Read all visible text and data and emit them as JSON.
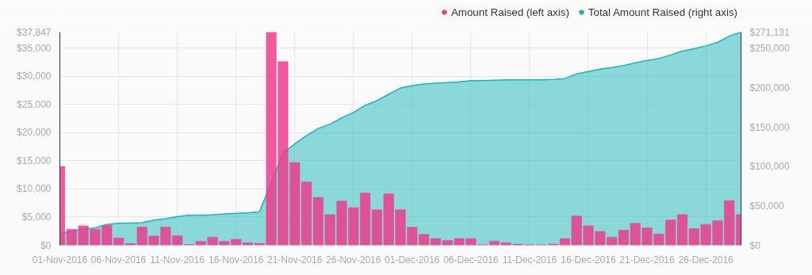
{
  "chart_data": {
    "type": "bar",
    "x": [
      "2016-11-01",
      "2016-11-02",
      "2016-11-03",
      "2016-11-04",
      "2016-11-05",
      "2016-11-06",
      "2016-11-07",
      "2016-11-08",
      "2016-11-09",
      "2016-11-10",
      "2016-11-11",
      "2016-11-12",
      "2016-11-13",
      "2016-11-14",
      "2016-11-15",
      "2016-11-16",
      "2016-11-17",
      "2016-11-18",
      "2016-11-19",
      "2016-11-20",
      "2016-11-21",
      "2016-11-22",
      "2016-11-23",
      "2016-11-24",
      "2016-11-25",
      "2016-11-26",
      "2016-11-27",
      "2016-11-28",
      "2016-11-29",
      "2016-11-30",
      "2016-12-01",
      "2016-12-02",
      "2016-12-03",
      "2016-12-04",
      "2016-12-05",
      "2016-12-06",
      "2016-12-07",
      "2016-12-08",
      "2016-12-09",
      "2016-12-10",
      "2016-12-11",
      "2016-12-12",
      "2016-12-13",
      "2016-12-14",
      "2016-12-15",
      "2016-12-16",
      "2016-12-17",
      "2016-12-18",
      "2016-12-19",
      "2016-12-20",
      "2016-12-21",
      "2016-12-22",
      "2016-12-23",
      "2016-12-24",
      "2016-12-25",
      "2016-12-26",
      "2016-12-27",
      "2016-12-28",
      "2016-12-29"
    ],
    "series": [
      {
        "name": "Total Amount Raised (right axis)",
        "type": "area",
        "axis": "y2",
        "color": "#1ab5b8",
        "values": [
          15100,
          17600,
          20400,
          22200,
          26500,
          28000,
          28300,
          28700,
          31900,
          33700,
          36600,
          38400,
          38400,
          38700,
          39800,
          40500,
          41300,
          42700,
          79600,
          117000,
          129000,
          139500,
          148500,
          154000,
          162000,
          169000,
          178000,
          184000,
          192000,
          200000,
          203000,
          205000,
          206000,
          207000,
          208000,
          209500,
          209500,
          210000,
          210500,
          210500,
          210500,
          210500,
          211000,
          212000,
          218000,
          221000,
          224000,
          226000,
          228500,
          232000,
          235000,
          237500,
          242000,
          247000,
          250000,
          253600,
          258000,
          266000,
          271131
        ]
      },
      {
        "name": "Amount Raised (left axis)",
        "color": "#ec3c8c",
        "values": [
          14000,
          2850,
          3450,
          2850,
          3550,
          1300,
          300,
          3250,
          1650,
          3250,
          1700,
          150,
          700,
          1450,
          700,
          1050,
          450,
          350,
          37847,
          32600,
          14700,
          11250,
          8500,
          5450,
          7850,
          6700,
          9300,
          6300,
          9150,
          6300,
          3200,
          1950,
          1200,
          850,
          1200,
          1200,
          100,
          750,
          450,
          200,
          100,
          100,
          200,
          1200,
          5200,
          3450,
          2450,
          1450,
          2700,
          3900,
          3100,
          2000,
          4500,
          5450,
          2950,
          3700,
          4350,
          7950,
          5450
        ]
      }
    ],
    "xlim": [
      "2016-11-01",
      "2016-12-29"
    ],
    "xticks": [
      {
        "value": "2016-11-01",
        "label": "01-Nov-2016"
      },
      {
        "value": "2016-11-06",
        "label": "06-Nov-2016"
      },
      {
        "value": "2016-11-11",
        "label": "11-Nov-2016"
      },
      {
        "value": "2016-11-16",
        "label": "16-Nov-2016"
      },
      {
        "value": "2016-11-21",
        "label": "21-Nov-2016"
      },
      {
        "value": "2016-11-26",
        "label": "26-Nov-2016"
      },
      {
        "value": "2016-12-01",
        "label": "01-Dec-2016"
      },
      {
        "value": "2016-12-06",
        "label": "06-Dec-2016"
      },
      {
        "value": "2016-12-11",
        "label": "11-Dec-2016"
      },
      {
        "value": "2016-12-16",
        "label": "16-Dec-2016"
      },
      {
        "value": "2016-12-21",
        "label": "21-Dec-2016"
      },
      {
        "value": "2016-12-26",
        "label": "26-Dec-2016"
      }
    ],
    "ylim": [
      0,
      37847
    ],
    "yticks": [
      {
        "value": 0,
        "label": "$0"
      },
      {
        "value": 5000,
        "label": "$5,000"
      },
      {
        "value": 10000,
        "label": "$10,000"
      },
      {
        "value": 15000,
        "label": "$15,000"
      },
      {
        "value": 20000,
        "label": "$20,000"
      },
      {
        "value": 25000,
        "label": "$25,000"
      },
      {
        "value": 30000,
        "label": "$30,000"
      },
      {
        "value": 35000,
        "label": "$35,000"
      },
      {
        "value": 37847,
        "label": "$37,847"
      }
    ],
    "y2lim": [
      0,
      271131
    ],
    "y2ticks": [
      {
        "value": 0,
        "label": "$0"
      },
      {
        "value": 50000,
        "label": "$50,000"
      },
      {
        "value": 100000,
        "label": "$100,000"
      },
      {
        "value": 150000,
        "label": "$150,000"
      },
      {
        "value": 200000,
        "label": "$200,000"
      },
      {
        "value": 250000,
        "label": "$250,000"
      },
      {
        "value": 271131,
        "label": "$271,131"
      }
    ],
    "grid": true,
    "legend": "top right"
  }
}
